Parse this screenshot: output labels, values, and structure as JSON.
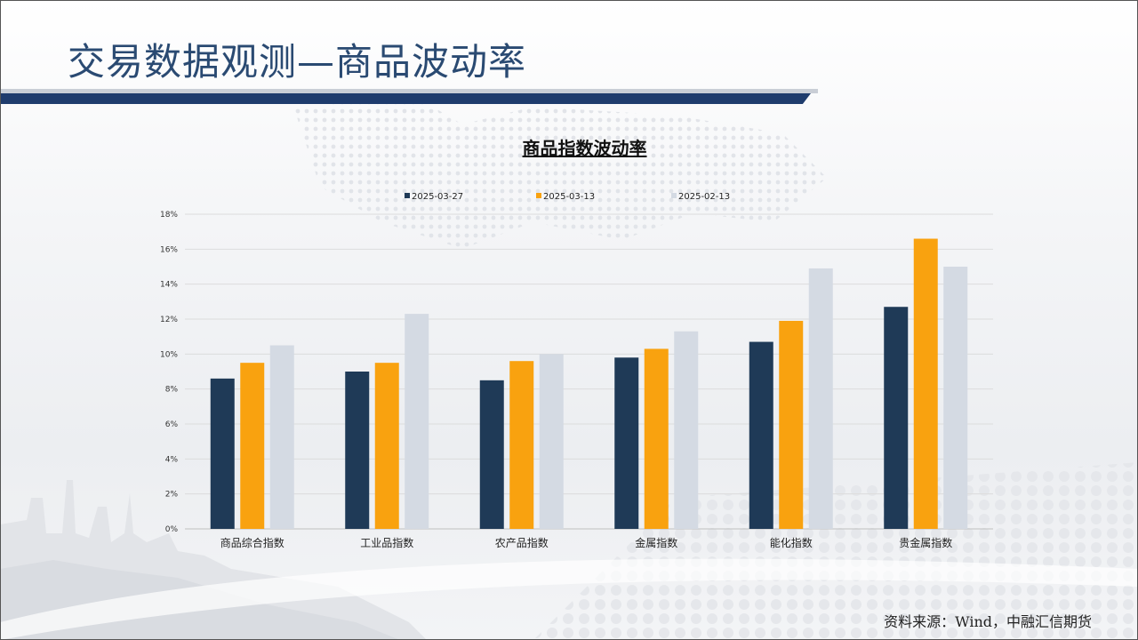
{
  "page": {
    "title": "交易数据观测—商品波动率",
    "source": "资料来源：Wind，中融汇信期货"
  },
  "colors": {
    "title": "#2a4a72",
    "title_rule": "#1f3c6d",
    "series": [
      "#1f3a57",
      "#f9a20f",
      "#d4dae3"
    ]
  },
  "chart_data": {
    "type": "bar",
    "title": "商品指数波动率",
    "categories": [
      "商品综合指数",
      "工业品指数",
      "农产品指数",
      "金属指数",
      "能化指数",
      "贵金属指数"
    ],
    "series": [
      {
        "name": "2025-03-27",
        "values": [
          8.6,
          9.0,
          8.5,
          9.8,
          10.7,
          12.7
        ]
      },
      {
        "name": "2025-03-13",
        "values": [
          9.5,
          9.5,
          9.6,
          10.3,
          11.9,
          16.6
        ]
      },
      {
        "name": "2025-02-13",
        "values": [
          10.5,
          12.3,
          10.0,
          11.3,
          14.9,
          15.0
        ]
      }
    ],
    "ylim": [
      0,
      18
    ],
    "yticks": [
      "0%",
      "2%",
      "4%",
      "6%",
      "8%",
      "10%",
      "12%",
      "14%",
      "16%",
      "18%"
    ],
    "grid": true,
    "legend": "top-center"
  }
}
